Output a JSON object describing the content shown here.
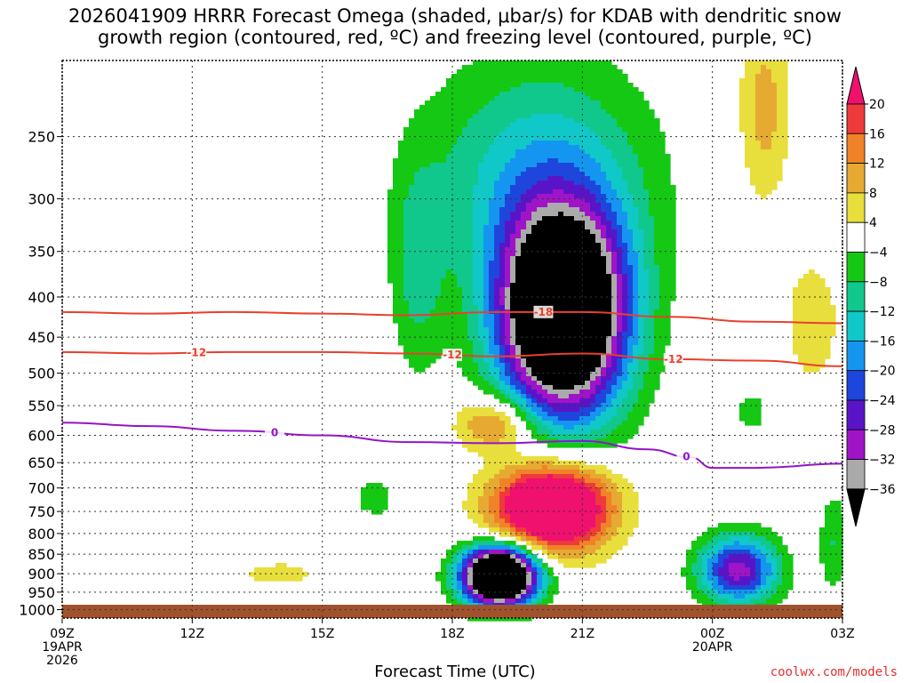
{
  "title_lines": [
    "2026041909 HRRR Forecast Omega (shaded, μbar/s) for KDAB with dendritic snow",
    "growth region (contoured, red, ºC) and freezing level (contoured, purple, ºC)"
  ],
  "credit": "coolwx.com/models",
  "chart_data": {
    "type": "heatmap",
    "xlabel": "Forecast Time (UTC)",
    "ylabel": "",
    "x_ticks": [
      {
        "hour": 0,
        "lines": [
          "09Z",
          "19APR",
          "2026"
        ]
      },
      {
        "hour": 3,
        "lines": [
          "12Z"
        ]
      },
      {
        "hour": 6,
        "lines": [
          "15Z"
        ]
      },
      {
        "hour": 9,
        "lines": [
          "18Z"
        ]
      },
      {
        "hour": 12,
        "lines": [
          "21Z"
        ]
      },
      {
        "hour": 15,
        "lines": [
          "00Z",
          "20APR"
        ]
      },
      {
        "hour": 18,
        "lines": [
          "03Z"
        ]
      }
    ],
    "xlim": [
      0,
      18
    ],
    "y_ticks": [
      250,
      300,
      350,
      400,
      450,
      500,
      550,
      600,
      650,
      700,
      750,
      800,
      850,
      900,
      950,
      1000
    ],
    "ylim_hpa": [
      200,
      1025
    ],
    "y_scale": "log",
    "colorbar": {
      "labels": [
        "20",
        "16",
        "12",
        "8",
        "4",
        "−4",
        "−8",
        "−12",
        "−16",
        "−20",
        "−24",
        "−28",
        "−32",
        "−36"
      ],
      "colors": [
        "#f0106e",
        "#ee3a3a",
        "#f08228",
        "#e6aa32",
        "#e8de3c",
        "#ffffff",
        "#14c814",
        "#10c88c",
        "#10c8c8",
        "#1496f0",
        "#1e46dc",
        "#5a14c8",
        "#a014c8",
        "#aaaaaa",
        "#000000"
      ]
    },
    "omega_levels": [
      -36,
      -32,
      -28,
      -24,
      -20,
      -16,
      -12,
      -8,
      -4,
      4,
      8,
      12,
      16,
      20
    ],
    "omega_features": [
      {
        "name": "upper ascent core",
        "center_hour": 11.5,
        "center_hpa": 420,
        "peak": -40
      },
      {
        "name": "low-level ascent core",
        "center_hour": 10.0,
        "center_hpa": 900,
        "peak": -40
      },
      {
        "name": "mid-level subsidence",
        "center_hour": 10.5,
        "center_hpa": 700,
        "peak": 24
      },
      {
        "name": "eastern ascent",
        "center_hour": 15.5,
        "center_hpa": 880,
        "peak": -26
      },
      {
        "name": "weak descent near 900",
        "center_hour": 5.0,
        "center_hpa": 900,
        "peak": 6
      }
    ],
    "series": [
      {
        "name": "-18 C isotherm (dendritic growth)",
        "color": "#e8402e",
        "label": "-18",
        "x": [
          0,
          2,
          4,
          6,
          8,
          10,
          12,
          14,
          16,
          18
        ],
        "y_hpa": [
          418,
          420,
          418,
          420,
          422,
          418,
          418,
          424,
          430,
          432
        ]
      },
      {
        "name": "-12 C isotherm (dendritic growth)",
        "color": "#e8402e",
        "label": "-12",
        "x": [
          0,
          2,
          4,
          6,
          8,
          10,
          12,
          14,
          16,
          18
        ],
        "y_hpa": [
          470,
          472,
          470,
          470,
          472,
          476,
          472,
          480,
          482,
          490
        ]
      },
      {
        "name": "0 C freezing level",
        "color": "#9214c8",
        "label": "0",
        "x": [
          0,
          2,
          4,
          6,
          8,
          10,
          12,
          13.5,
          14.5,
          15,
          16,
          18
        ],
        "y_hpa": [
          578,
          584,
          592,
          600,
          612,
          614,
          610,
          625,
          640,
          660,
          660,
          652
        ]
      }
    ]
  }
}
